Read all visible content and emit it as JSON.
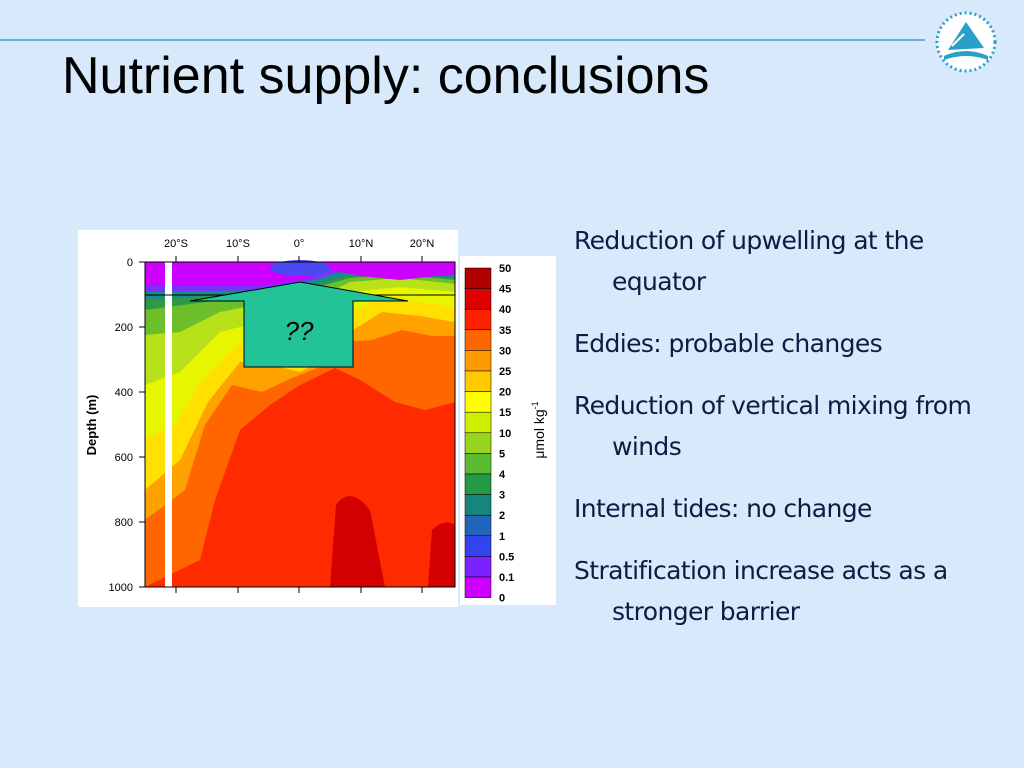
{
  "header": {
    "title": "Nutrient supply: conclusions"
  },
  "figure": {
    "x_ticks": [
      "20°S",
      "10°S",
      "0°",
      "10°N",
      "20°N"
    ],
    "y_ticks": [
      "0",
      "200",
      "400",
      "600",
      "800",
      "1000"
    ],
    "y_label": "Depth (m)",
    "annotation": "??",
    "colorbar": {
      "levels": [
        "50",
        "45",
        "40",
        "35",
        "30",
        "25",
        "20",
        "15",
        "10",
        "5",
        "4",
        "3",
        "2",
        "1",
        "0.5",
        "0.1",
        "0"
      ],
      "label": "μmol kg",
      "label_superscript": "-1"
    }
  },
  "bullets": [
    "Reduction of upwelling at the equator",
    "Eddies: probable changes",
    "Reduction of vertical mixing from winds",
    "Internal tides: no change",
    "Stratification increase acts as a stronger barrier"
  ]
}
